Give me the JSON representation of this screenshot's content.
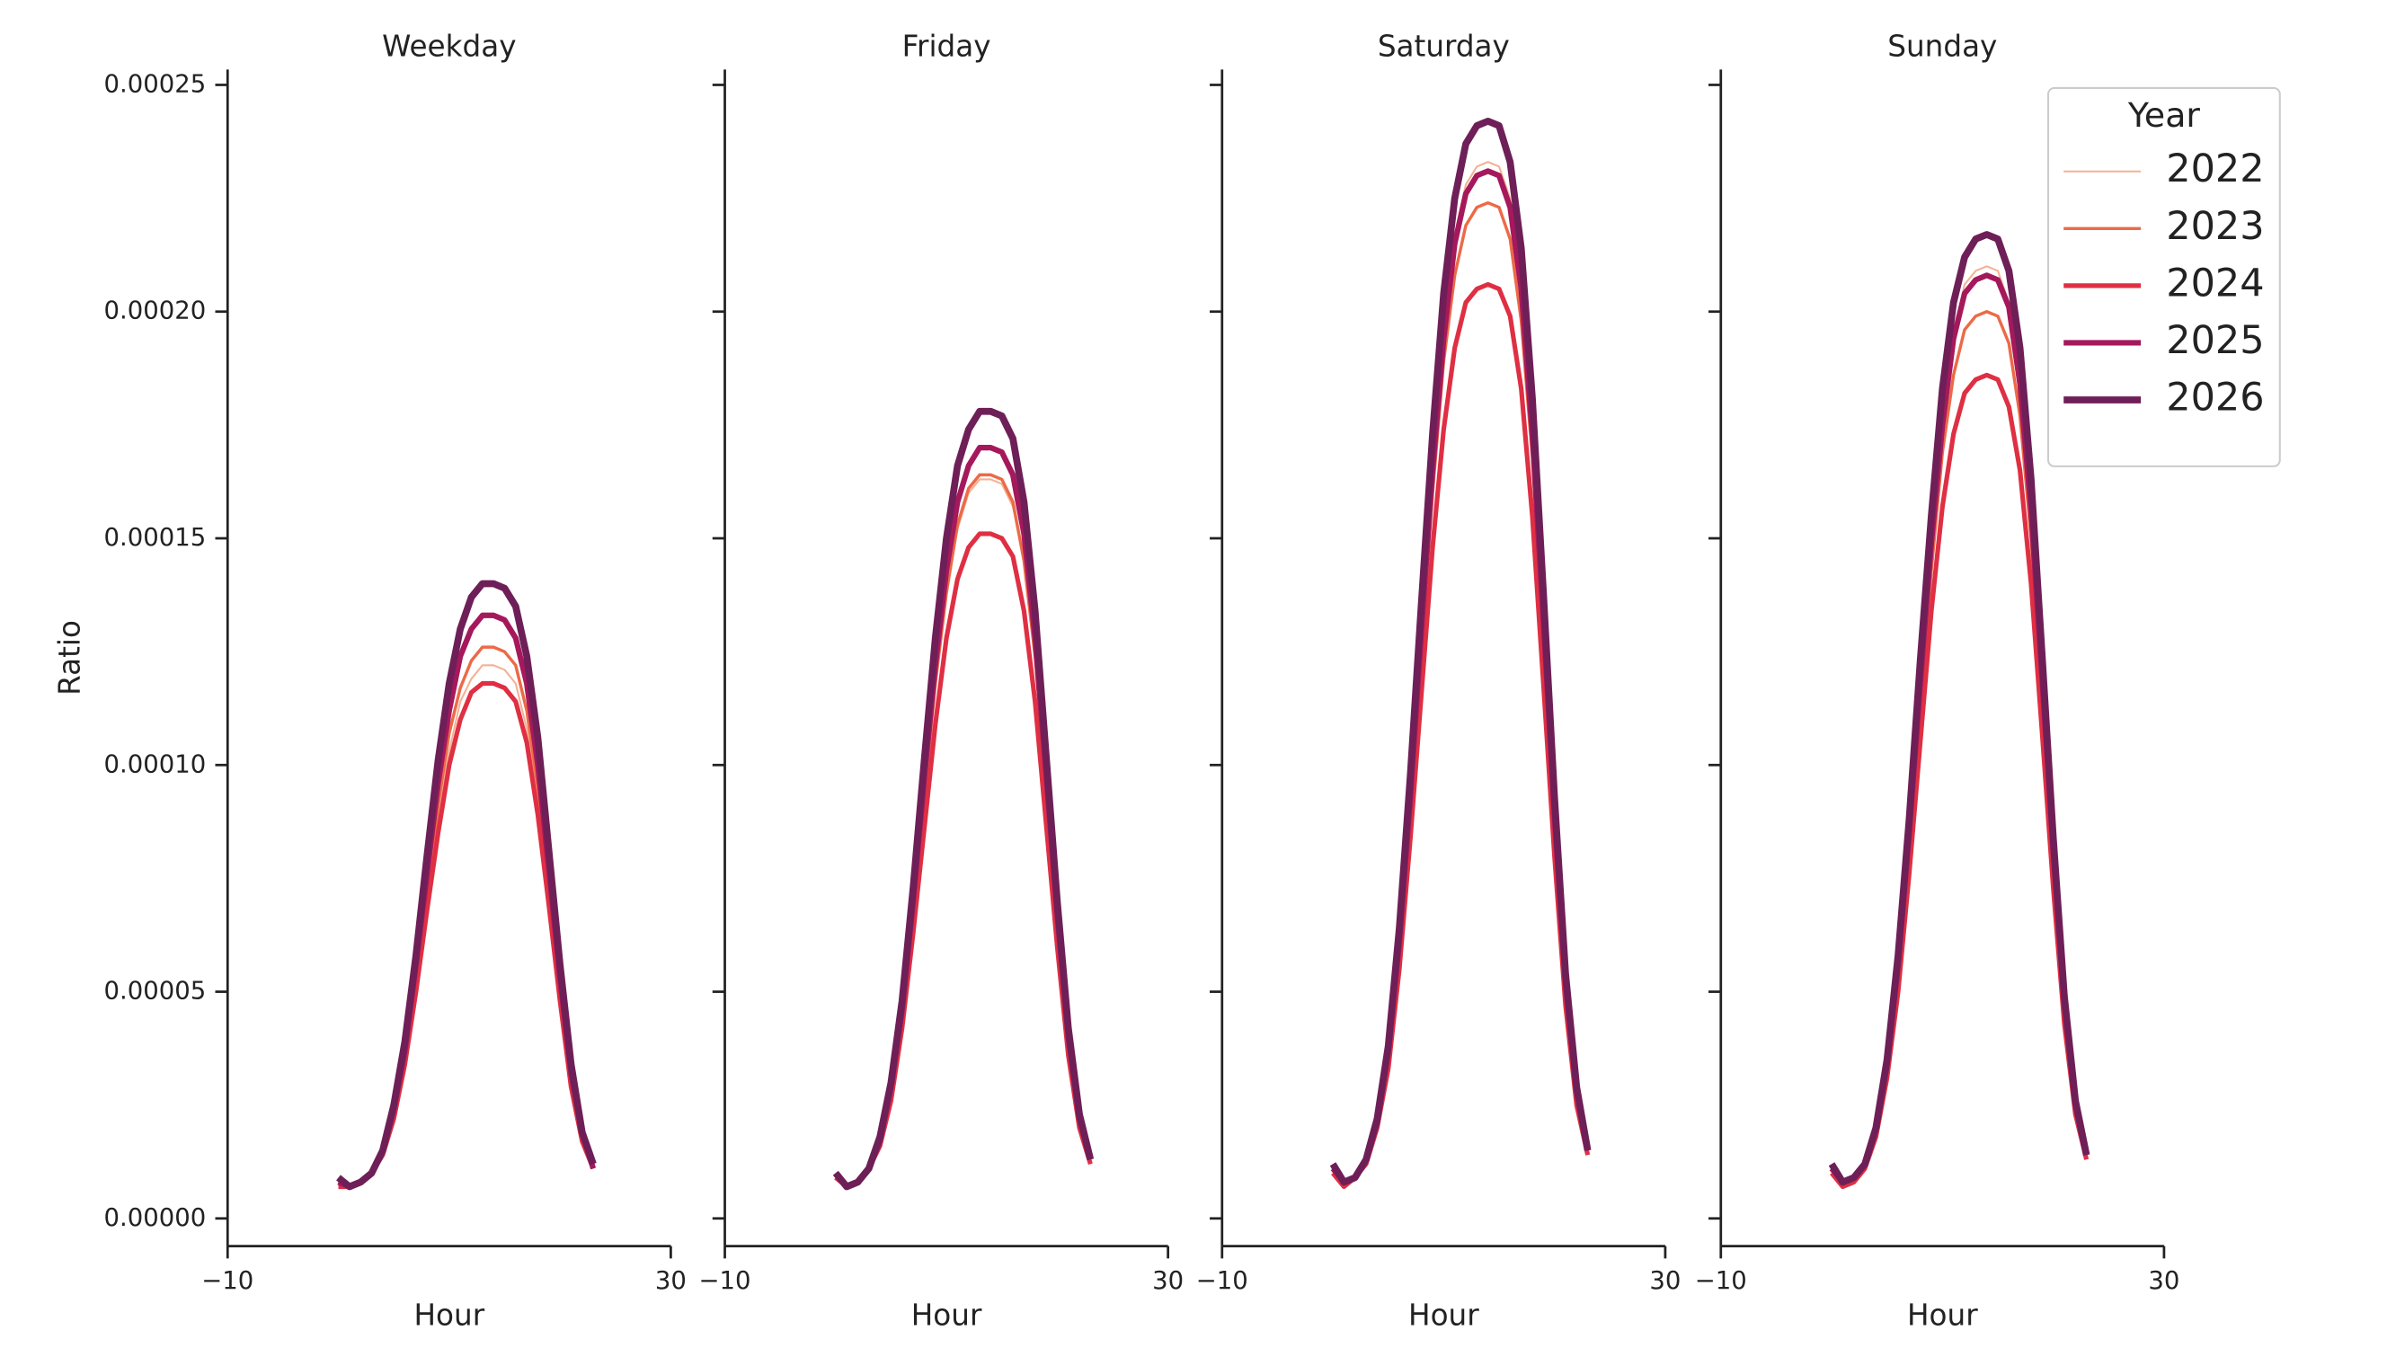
{
  "chart_data": [
    {
      "type": "line",
      "title": "Weekday",
      "xlabel": "Hour",
      "ylabel": "Ratio",
      "x": [
        0,
        1,
        2,
        3,
        4,
        5,
        6,
        7,
        8,
        9,
        10,
        11,
        12,
        13,
        14,
        15,
        16,
        17,
        18,
        19,
        20,
        21,
        22,
        23
      ],
      "xlim": [
        -10,
        30
      ],
      "xticks": [
        {
          "value": -10,
          "label": "−10"
        },
        30
      ],
      "ylim": [
        -6.1e-06,
        0.0002534
      ],
      "yticks": [
        {
          "value": 0,
          "label": "0.00000"
        },
        {
          "value": 5e-05,
          "label": "0.00005"
        },
        {
          "value": 0.0001,
          "label": "0.00010"
        },
        {
          "value": 0.00015,
          "label": "0.00015"
        },
        {
          "value": 0.0002,
          "label": "0.00020"
        },
        {
          "value": 0.00025,
          "label": "0.00025"
        }
      ],
      "series": [
        {
          "name": "2022",
          "color": "#f4b194",
          "line_width": 1.2,
          "values": [
            8e-06,
            7e-06,
            8e-06,
            1e-05,
            1.4e-05,
            2.2e-05,
            3.5e-05,
            5.1e-05,
            7e-05,
            8.8e-05,
            0.000103,
            0.000114,
            0.000119,
            0.000122,
            0.000122,
            0.000121,
            0.000118,
            0.000108,
            9.2e-05,
            7.1e-05,
            4.9e-05,
            3e-05,
            1.8e-05,
            1.1e-05
          ]
        },
        {
          "name": "2023",
          "color": "#ec6a47",
          "line_width": 2,
          "values": [
            8e-06,
            7e-06,
            8e-06,
            1e-05,
            1.5e-05,
            2.3e-05,
            3.6e-05,
            5.3e-05,
            7.2e-05,
            9.1e-05,
            0.000107,
            0.000117,
            0.000123,
            0.000126,
            0.000126,
            0.000125,
            0.000122,
            0.000112,
            9.5e-05,
            7.3e-05,
            5.1e-05,
            3.1e-05,
            1.8e-05,
            1.1e-05
          ]
        },
        {
          "name": "2024",
          "color": "#df2f43",
          "line_width": 3,
          "values": [
            7e-06,
            7e-06,
            8e-06,
            1e-05,
            1.4e-05,
            2.2e-05,
            3.4e-05,
            5e-05,
            6.8e-05,
            8.5e-05,
            0.0001,
            0.00011,
            0.000116,
            0.000118,
            0.000118,
            0.000117,
            0.000114,
            0.000105,
            8.9e-05,
            6.9e-05,
            4.8e-05,
            2.9e-05,
            1.7e-05,
            1.1e-05
          ]
        },
        {
          "name": "2025",
          "color": "#a5195c",
          "line_width": 3.6,
          "values": [
            8e-06,
            7e-06,
            8e-06,
            1e-05,
            1.5e-05,
            2.4e-05,
            3.7e-05,
            5.6e-05,
            7.6e-05,
            9.6e-05,
            0.000112,
            0.000124,
            0.00013,
            0.000133,
            0.000133,
            0.000132,
            0.000128,
            0.000118,
            0.0001,
            7.7e-05,
            5.3e-05,
            3.2e-05,
            1.9e-05,
            1.1e-05
          ]
        },
        {
          "name": "2026",
          "color": "#6e1f57",
          "line_width": 4.5,
          "values": [
            9e-06,
            7e-06,
            8e-06,
            1e-05,
            1.5e-05,
            2.5e-05,
            3.9e-05,
            5.8e-05,
            8e-05,
            0.000101,
            0.000118,
            0.00013,
            0.000137,
            0.00014,
            0.00014,
            0.000139,
            0.000135,
            0.000124,
            0.000106,
            8.1e-05,
            5.6e-05,
            3.4e-05,
            1.9e-05,
            1.2e-05
          ]
        }
      ]
    },
    {
      "type": "line",
      "title": "Friday",
      "xlabel": "Hour",
      "x": [
        0,
        1,
        2,
        3,
        4,
        5,
        6,
        7,
        8,
        9,
        10,
        11,
        12,
        13,
        14,
        15,
        16,
        17,
        18,
        19,
        20,
        21,
        22,
        23
      ],
      "xlim": [
        -10,
        30
      ],
      "xticks": [
        {
          "value": -10,
          "label": "−10"
        },
        30
      ],
      "ylim": [
        -6.1e-06,
        0.0002534
      ],
      "series": [
        {
          "name": "2022",
          "color": "#f4b194",
          "line_width": 1.2,
          "values": [
            1e-05,
            7e-06,
            8e-06,
            1.1e-05,
            1.7e-05,
            2.8e-05,
            4.5e-05,
            6.7e-05,
            9.3e-05,
            0.000117,
            0.000138,
            0.000152,
            0.00016,
            0.000163,
            0.000163,
            0.000162,
            0.000157,
            0.000145,
            0.000123,
            9.4e-05,
            6.4e-05,
            3.9e-05,
            2.1e-05,
            1.2e-05
          ]
        },
        {
          "name": "2023",
          "color": "#ec6a47",
          "line_width": 2,
          "values": [
            1e-05,
            7e-06,
            8e-06,
            1.1e-05,
            1.7e-05,
            2.8e-05,
            4.5e-05,
            6.8e-05,
            9.3e-05,
            0.000118,
            0.000138,
            0.000153,
            0.000161,
            0.000164,
            0.000164,
            0.000163,
            0.000158,
            0.000145,
            0.000124,
            9.5e-05,
            6.4e-05,
            3.9e-05,
            2.1e-05,
            1.2e-05
          ]
        },
        {
          "name": "2024",
          "color": "#df2f43",
          "line_width": 3,
          "values": [
            9e-06,
            7e-06,
            8e-06,
            1.1e-05,
            1.6e-05,
            2.6e-05,
            4.2e-05,
            6.3e-05,
            8.6e-05,
            0.000109,
            0.000128,
            0.000141,
            0.000148,
            0.000151,
            0.000151,
            0.00015,
            0.000146,
            0.000134,
            0.000114,
            8.7e-05,
            6e-05,
            3.6e-05,
            2e-05,
            1.2e-05
          ]
        },
        {
          "name": "2025",
          "color": "#a5195c",
          "line_width": 3.6,
          "values": [
            1e-05,
            7e-06,
            8e-06,
            1.1e-05,
            1.7e-05,
            2.9e-05,
            4.6e-05,
            7e-05,
            9.7e-05,
            0.000122,
            0.000143,
            0.000158,
            0.000166,
            0.00017,
            0.00017,
            0.000169,
            0.000164,
            0.000151,
            0.000128,
            9.8e-05,
            6.7e-05,
            4e-05,
            2.2e-05,
            1.3e-05
          ]
        },
        {
          "name": "2026",
          "color": "#6e1f57",
          "line_width": 4.5,
          "values": [
            1e-05,
            7e-06,
            8e-06,
            1.1e-05,
            1.8e-05,
            3e-05,
            4.8e-05,
            7.3e-05,
            0.000101,
            0.000128,
            0.00015,
            0.000166,
            0.000174,
            0.000178,
            0.000178,
            0.000177,
            0.000172,
            0.000158,
            0.000134,
            0.000102,
            7e-05,
            4.2e-05,
            2.3e-05,
            1.3e-05
          ]
        }
      ]
    },
    {
      "type": "line",
      "title": "Saturday",
      "xlabel": "Hour",
      "x": [
        0,
        1,
        2,
        3,
        4,
        5,
        6,
        7,
        8,
        9,
        10,
        11,
        12,
        13,
        14,
        15,
        16,
        17,
        18,
        19,
        20,
        21,
        22,
        23
      ],
      "xlim": [
        -10,
        30
      ],
      "xticks": [
        {
          "value": -10,
          "label": "−10"
        },
        30
      ],
      "ylim": [
        -6.1e-06,
        0.0002534
      ],
      "series": [
        {
          "name": "2022",
          "color": "#f4b194",
          "line_width": 1.2,
          "values": [
            1.1e-05,
            8e-06,
            9e-06,
            1.3e-05,
            2.1e-05,
            3.7e-05,
            6.2e-05,
            9.4e-05,
            0.000131,
            0.000167,
            0.000196,
            0.000217,
            0.000228,
            0.000232,
            0.000233,
            0.000232,
            0.000225,
            0.000206,
            0.000175,
            0.000133,
            9e-05,
            5.3e-05,
            2.8e-05,
            1.5e-05
          ]
        },
        {
          "name": "2023",
          "color": "#ec6a47",
          "line_width": 2,
          "values": [
            1.1e-05,
            8e-06,
            9e-06,
            1.2e-05,
            2.1e-05,
            3.6e-05,
            6e-05,
            9.1e-05,
            0.000126,
            0.00016,
            0.000189,
            0.000208,
            0.000219,
            0.000223,
            0.000224,
            0.000223,
            0.000216,
            0.000198,
            0.000168,
            0.000128,
            8.6e-05,
            5.1e-05,
            2.7e-05,
            1.4e-05
          ]
        },
        {
          "name": "2024",
          "color": "#df2f43",
          "line_width": 3,
          "values": [
            1e-05,
            7e-06,
            9e-06,
            1.2e-05,
            2e-05,
            3.3e-05,
            5.5e-05,
            8.4e-05,
            0.000116,
            0.000148,
            0.000174,
            0.000192,
            0.000202,
            0.000205,
            0.000206,
            0.000205,
            0.000199,
            0.000183,
            0.000155,
            0.000118,
            8e-05,
            4.7e-05,
            2.5e-05,
            1.4e-05
          ]
        },
        {
          "name": "2025",
          "color": "#a5195c",
          "line_width": 3.6,
          "values": [
            1.1e-05,
            8e-06,
            9e-06,
            1.3e-05,
            2.1e-05,
            3.7e-05,
            6.1e-05,
            9.3e-05,
            0.00013,
            0.000165,
            0.000194,
            0.000215,
            0.000226,
            0.00023,
            0.000231,
            0.00023,
            0.000223,
            0.000205,
            0.000173,
            0.000132,
            8.9e-05,
            5.2e-05,
            2.8e-05,
            1.5e-05
          ]
        },
        {
          "name": "2026",
          "color": "#6e1f57",
          "line_width": 4.5,
          "values": [
            1.2e-05,
            8e-06,
            9e-06,
            1.3e-05,
            2.2e-05,
            3.8e-05,
            6.4e-05,
            9.8e-05,
            0.000136,
            0.000173,
            0.000204,
            0.000225,
            0.000237,
            0.000241,
            0.000242,
            0.000241,
            0.000233,
            0.000214,
            0.000181,
            0.000138,
            9.3e-05,
            5.4e-05,
            2.9e-05,
            1.5e-05
          ]
        }
      ]
    },
    {
      "type": "line",
      "title": "Sunday",
      "xlabel": "Hour",
      "x": [
        0,
        1,
        2,
        3,
        4,
        5,
        6,
        7,
        8,
        9,
        10,
        11,
        12,
        13,
        14,
        15,
        16,
        17,
        18,
        19,
        20,
        21,
        22,
        23
      ],
      "xlim": [
        -10,
        30
      ],
      "xticks": [
        {
          "value": -10,
          "label": "−10"
        },
        30
      ],
      "ylim": [
        -6.1e-06,
        0.0002534
      ],
      "legend": {
        "title": "Year",
        "loc": "upper right"
      },
      "series": [
        {
          "name": "2022",
          "color": "#f4b194",
          "line_width": 1.2,
          "values": [
            1.1e-05,
            8e-06,
            9e-06,
            1.2e-05,
            2e-05,
            3.4e-05,
            5.6e-05,
            8.5e-05,
            0.000119,
            0.000151,
            0.000177,
            0.000195,
            0.000206,
            0.000209,
            0.00021,
            0.000209,
            0.000202,
            0.000186,
            0.000158,
            0.00012,
            8.1e-05,
            4.8e-05,
            2.6e-05,
            1.4e-05
          ]
        },
        {
          "name": "2023",
          "color": "#ec6a47",
          "line_width": 2,
          "values": [
            1.1e-05,
            8e-06,
            9e-06,
            1.2e-05,
            1.9e-05,
            3.2e-05,
            5.4e-05,
            8.1e-05,
            0.000113,
            0.000143,
            0.000169,
            0.000186,
            0.000196,
            0.000199,
            0.0002,
            0.000199,
            0.000193,
            0.000177,
            0.00015,
            0.000115,
            7.8e-05,
            4.6e-05,
            2.5e-05,
            1.4e-05
          ]
        },
        {
          "name": "2024",
          "color": "#df2f43",
          "line_width": 3,
          "values": [
            1e-05,
            7e-06,
            8e-06,
            1.1e-05,
            1.8e-05,
            3.1e-05,
            5e-05,
            7.6e-05,
            0.000105,
            0.000134,
            0.000157,
            0.000173,
            0.000182,
            0.000185,
            0.000186,
            0.000185,
            0.000179,
            0.000165,
            0.00014,
            0.000107,
            7.3e-05,
            4.3e-05,
            2.3e-05,
            1.3e-05
          ]
        },
        {
          "name": "2025",
          "color": "#a5195c",
          "line_width": 3.6,
          "values": [
            1.1e-05,
            8e-06,
            9e-06,
            1.2e-05,
            2e-05,
            3.4e-05,
            5.6e-05,
            8.5e-05,
            0.000118,
            0.000149,
            0.000175,
            0.000194,
            0.000204,
            0.000207,
            0.000208,
            0.000207,
            0.000201,
            0.000184,
            0.000156,
            0.000119,
            8.1e-05,
            4.8e-05,
            2.5e-05,
            1.4e-05
          ]
        },
        {
          "name": "2026",
          "color": "#6e1f57",
          "line_width": 4.5,
          "values": [
            1.2e-05,
            8e-06,
            9e-06,
            1.2e-05,
            2e-05,
            3.5e-05,
            5.8e-05,
            8.8e-05,
            0.000123,
            0.000155,
            0.000183,
            0.000202,
            0.000212,
            0.000216,
            0.000217,
            0.000216,
            0.000209,
            0.000192,
            0.000163,
            0.000124,
            8.4e-05,
            4.9e-05,
            2.6e-05,
            1.4e-05
          ]
        }
      ]
    }
  ]
}
